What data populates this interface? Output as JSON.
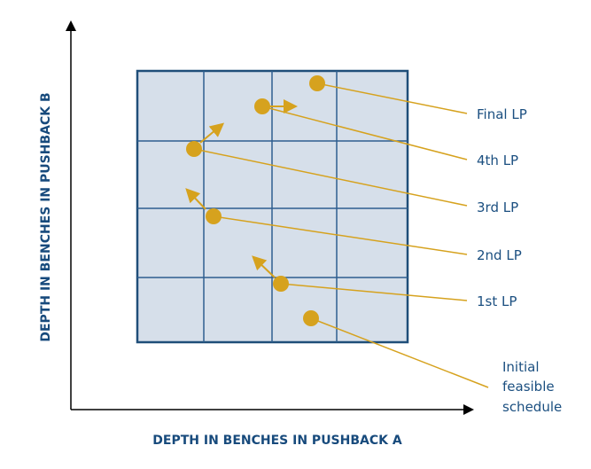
{
  "axes": {
    "x_label": "DEPTH IN BENCHES IN PUSHBACK A",
    "y_label": "DEPTH IN BENCHES IN PUSHBACK B"
  },
  "labels": {
    "final": "Final LP",
    "fourth": "4th LP",
    "third": "3rd LP",
    "second": "2nd LP",
    "first": "1st LP",
    "initial_1": "Initial",
    "initial_2": "feasible",
    "initial_3": "schedule"
  },
  "colors": {
    "grid": "#1f4e79",
    "grid_fill": "#d6dfea",
    "point": "#d6a21e",
    "text": "#1b4f80"
  }
}
